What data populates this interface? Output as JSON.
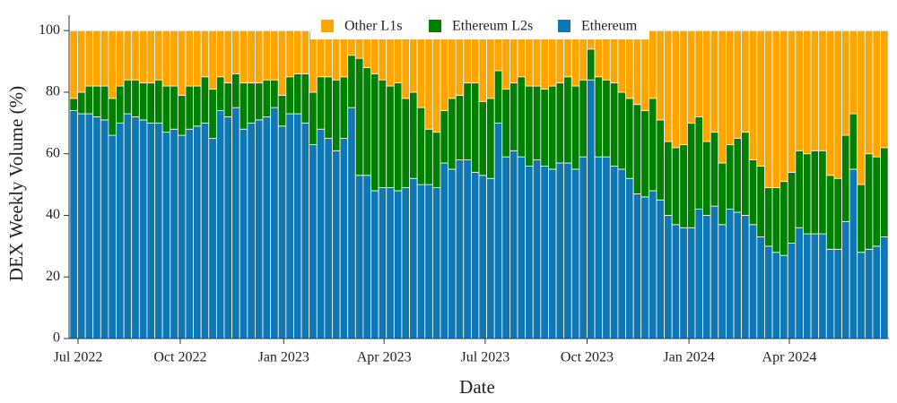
{
  "chart_data": {
    "type": "stacked_bar",
    "xlabel": "Date",
    "ylabel": "DEX Weekly Volume (%)",
    "categories": [
      null,
      null,
      null,
      null,
      null,
      null,
      null,
      null,
      null,
      null,
      null,
      null,
      null,
      null,
      null,
      null,
      null,
      null,
      null,
      null,
      null,
      null,
      null,
      null,
      null,
      null,
      null,
      null,
      null,
      null,
      null,
      null,
      null,
      null,
      null,
      null,
      null,
      null,
      null,
      null,
      null,
      null,
      null,
      null,
      null,
      null,
      null,
      null,
      null,
      null,
      null,
      null,
      null,
      null,
      null,
      null,
      null,
      null,
      null,
      null,
      null,
      null,
      null,
      null,
      null,
      null,
      null,
      null,
      null,
      null,
      null,
      null,
      null,
      null,
      null,
      null,
      null,
      null,
      null,
      null,
      null,
      null,
      null,
      null,
      null,
      null,
      null,
      null,
      null,
      null,
      null,
      null,
      null,
      null,
      null,
      null,
      null,
      null,
      null,
      null,
      null,
      null,
      null,
      null,
      null,
      null
    ],
    "xlim": [
      -0.6,
      105.6
    ],
    "xticks": [
      {
        "value": 0.56,
        "label": "Jul 2022"
      },
      {
        "value": 13.8,
        "label": "Oct 2022"
      },
      {
        "value": 27.2,
        "label": "Jan 2023"
      },
      {
        "value": 40.2,
        "label": "Apr 2023"
      },
      {
        "value": 53.3,
        "label": "Jul 2023"
      },
      {
        "value": 66.5,
        "label": "Oct 2023"
      },
      {
        "value": 79.7,
        "label": "Jan 2024"
      },
      {
        "value": 92.7,
        "label": "Apr 2024"
      }
    ],
    "ylim": [
      0,
      105
    ],
    "yticks": [
      0,
      20,
      40,
      60,
      80,
      100
    ],
    "legend": "top",
    "series": [
      {
        "name": "Other L1s",
        "color": "#ffa500",
        "values": [
          22,
          20,
          18,
          18,
          18,
          22,
          18,
          16,
          16,
          17,
          17,
          16,
          18,
          18,
          21,
          18,
          18,
          15,
          19,
          15,
          17,
          14,
          17,
          17,
          17,
          16,
          16,
          21,
          15,
          14,
          14,
          20,
          15,
          15,
          16,
          15,
          8,
          9,
          12,
          14,
          16,
          18,
          17,
          22,
          20,
          25,
          32,
          33,
          26,
          22,
          21,
          17,
          17,
          23,
          22,
          13,
          19,
          17,
          15,
          18,
          18,
          19,
          18,
          17,
          15,
          18,
          16,
          6,
          15,
          16,
          17,
          20,
          22,
          24,
          26,
          22,
          29,
          36,
          38,
          37,
          30,
          28,
          36,
          33,
          43,
          37,
          35,
          33,
          42,
          44,
          51,
          51,
          49,
          46,
          39,
          40,
          39,
          39,
          47,
          48,
          34,
          27,
          50,
          40,
          41,
          38
        ]
      },
      {
        "name": "Ethereum L2s",
        "color": "#008000",
        "values": [
          4,
          7,
          9,
          10,
          11,
          12,
          12,
          11,
          12,
          12,
          13,
          14,
          15,
          14,
          13,
          14,
          13,
          15,
          16,
          11,
          11,
          11,
          15,
          13,
          12,
          12,
          9,
          10,
          12,
          13,
          16,
          17,
          17,
          20,
          23,
          20,
          17,
          38,
          35,
          38,
          35,
          33,
          35,
          29,
          28,
          25,
          18,
          18,
          17,
          23,
          21,
          25,
          29,
          24,
          26,
          17,
          22,
          22,
          26,
          26,
          24,
          25,
          27,
          26,
          28,
          27,
          25,
          10,
          26,
          25,
          27,
          25,
          26,
          29,
          28,
          30,
          26,
          24,
          25,
          27,
          34,
          30,
          24,
          24,
          20,
          21,
          24,
          27,
          21,
          23,
          19,
          21,
          24,
          23,
          25,
          26,
          27,
          27,
          24,
          23,
          28,
          18,
          22,
          31,
          29,
          29
        ]
      },
      {
        "name": "Ethereum",
        "color": "#1077b5",
        "values": [
          74,
          73,
          73,
          72,
          71,
          66,
          70,
          73,
          72,
          71,
          70,
          70,
          67,
          68,
          66,
          68,
          69,
          70,
          65,
          74,
          72,
          75,
          68,
          70,
          71,
          72,
          75,
          69,
          73,
          73,
          70,
          63,
          68,
          65,
          61,
          65,
          75,
          53,
          53,
          48,
          49,
          49,
          48,
          49,
          52,
          50,
          50,
          49,
          57,
          55,
          58,
          58,
          54,
          53,
          52,
          70,
          59,
          61,
          59,
          56,
          58,
          56,
          55,
          57,
          57,
          55,
          59,
          84,
          59,
          59,
          56,
          55,
          52,
          47,
          46,
          48,
          45,
          40,
          37,
          36,
          36,
          42,
          40,
          43,
          37,
          42,
          41,
          40,
          37,
          33,
          30,
          28,
          27,
          31,
          36,
          34,
          34,
          34,
          29,
          29,
          38,
          55,
          28,
          29,
          30,
          33
        ]
      }
    ]
  }
}
